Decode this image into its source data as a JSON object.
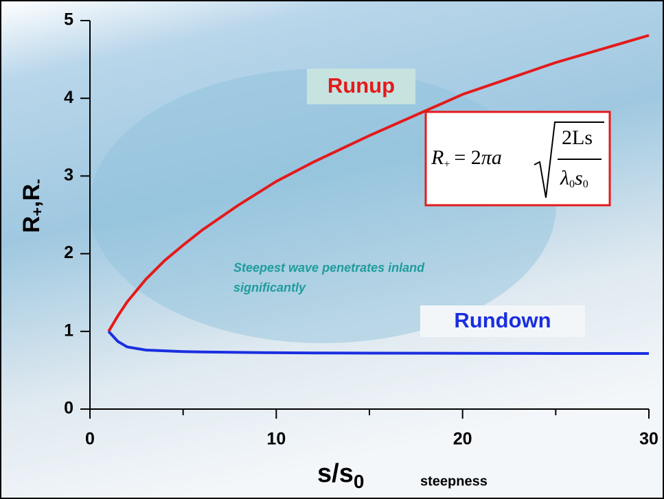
{
  "chart_data": {
    "type": "line",
    "x": [
      1,
      1.5,
      2,
      3,
      4,
      5,
      6,
      8,
      10,
      12,
      15,
      20,
      25,
      30
    ],
    "series": [
      {
        "name": "Runup",
        "color": "#e41a1a",
        "values": [
          1,
          1.2,
          1.38,
          1.67,
          1.91,
          2.11,
          2.3,
          2.63,
          2.93,
          3.18,
          3.52,
          4.05,
          4.46,
          4.81
        ]
      },
      {
        "name": "Rundown",
        "color": "#1a2ee0",
        "values": [
          1,
          0.87,
          0.8,
          0.76,
          0.75,
          0.74,
          0.735,
          0.73,
          0.725,
          0.722,
          0.72,
          0.718,
          0.716,
          0.715
        ]
      }
    ],
    "xlim": [
      0,
      30
    ],
    "ylim": [
      0,
      5
    ],
    "xticks": [
      0,
      10,
      20,
      30
    ],
    "xminorticks": [
      5,
      15,
      25
    ],
    "yticks": [
      0,
      1,
      2,
      3,
      4,
      5
    ],
    "ylabel": [
      "R",
      "+",
      ",R",
      "-"
    ],
    "xlabel": [
      "s/s",
      "0"
    ],
    "xlabel_note": "steepness",
    "annotation": [
      "Steepest wave penetrates inland",
      "significantly"
    ],
    "formula": [
      "R",
      "+",
      "= 2",
      "π",
      "a",
      "2Ls",
      "λ",
      "0",
      "s",
      "0"
    ]
  }
}
